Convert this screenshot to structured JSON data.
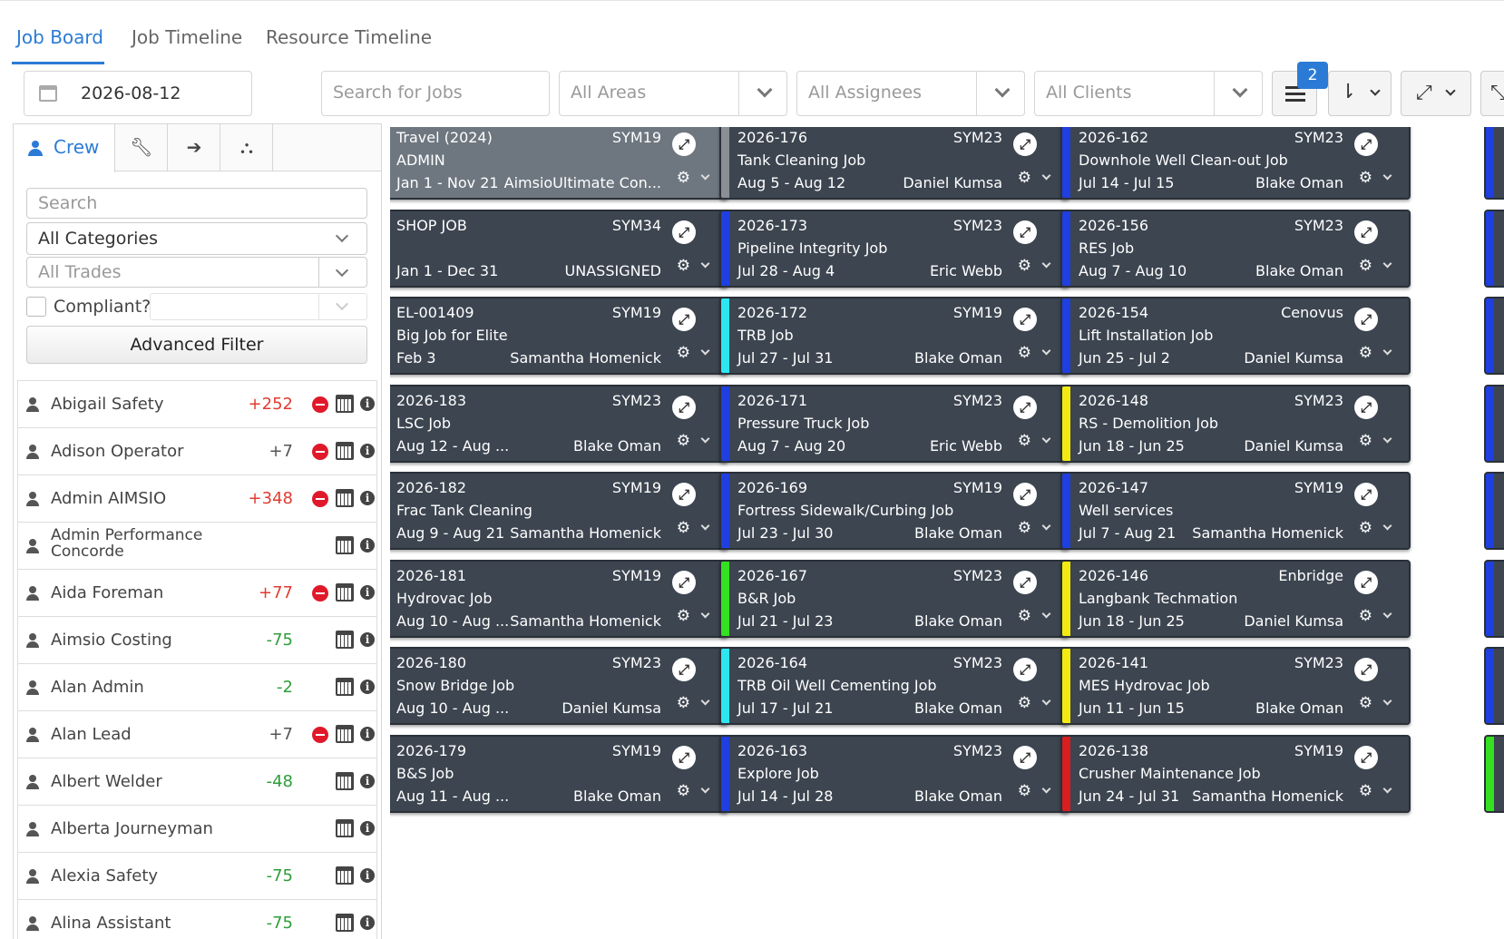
{
  "tabs": [
    {
      "label": "Job Board",
      "active": true
    },
    {
      "label": "Job Timeline",
      "active": false
    },
    {
      "label": "Resource Timeline",
      "active": false
    }
  ],
  "toolbar": {
    "date": "2026-08-12",
    "search_placeholder": "Search for Jobs",
    "areas_placeholder": "All Areas",
    "assignees_placeholder": "All Assignees",
    "clients_placeholder": "All Clients",
    "list_badge": "2",
    "icons": {
      "date": "calendar-icon",
      "list": "list-view-icon",
      "sort": "sort-icon",
      "expand": "expand-icon"
    }
  },
  "sidebar": {
    "tabs": [
      {
        "label": "Crew",
        "icon": "user-icon",
        "active": true
      },
      {
        "label": "",
        "icon": "wrench-icon",
        "active": false
      },
      {
        "label": "",
        "icon": "sign-in-icon",
        "active": false
      },
      {
        "label": "",
        "icon": "hierarchy-icon",
        "active": false
      }
    ],
    "search_placeholder": "Search",
    "categories_value": "All Categories",
    "trades_placeholder": "All Trades",
    "compliant_label": "Compliant?",
    "advanced_filter_label": "Advanced Filter",
    "crew": [
      {
        "name": "Abigail Safety",
        "value": "+252",
        "color": "red",
        "flag": true
      },
      {
        "name": "Adison Operator",
        "value": "+7",
        "color": "gray",
        "flag": true
      },
      {
        "name": "Admin AIMSIO",
        "value": "+348",
        "color": "red",
        "flag": true
      },
      {
        "name": "Admin Performance Concorde",
        "value": "",
        "color": "gray",
        "flag": false
      },
      {
        "name": "Aida Foreman",
        "value": "+77",
        "color": "red",
        "flag": true
      },
      {
        "name": "Aimsio Costing",
        "value": "-75",
        "color": "green",
        "flag": false
      },
      {
        "name": "Alan Admin",
        "value": "-2",
        "color": "green",
        "flag": false
      },
      {
        "name": "Alan Lead",
        "value": "+7",
        "color": "gray",
        "flag": true
      },
      {
        "name": "Albert Welder",
        "value": "-48",
        "color": "green",
        "flag": false
      },
      {
        "name": "Alberta Journeyman",
        "value": "",
        "color": "gray",
        "flag": false
      },
      {
        "name": "Alexia Safety",
        "value": "-75",
        "color": "green",
        "flag": false
      },
      {
        "name": "Alina Assistant",
        "value": "-75",
        "color": "green",
        "flag": false
      }
    ]
  },
  "jobs": [
    [
      {
        "num": "Travel (2024)",
        "code": "SYM19",
        "name": "ADMIN",
        "dates": "Jan 1 - Nov 21",
        "assignee": "AimsioUltimate Con...",
        "strip": "#222222",
        "light": true
      },
      {
        "num": "SHOP JOB",
        "code": "SYM34",
        "name": "",
        "dates": "Jan 1 - Dec 31",
        "assignee": "UNASSIGNED",
        "strip": "#111111",
        "light": false
      },
      {
        "num": "EL-001409",
        "code": "SYM19",
        "name": "Big Job for Elite",
        "dates": "Feb 3",
        "assignee": "Samantha Homenick",
        "strip": "#8e1aa0",
        "light": false
      },
      {
        "num": "2026-183",
        "code": "SYM23",
        "name": "LSC Job",
        "dates": "Aug 12 - Aug ...",
        "assignee": "Blake Oman",
        "strip": "#34e021",
        "light": false
      },
      {
        "num": "2026-182",
        "code": "SYM19",
        "name": "Frac Tank Cleaning",
        "dates": "Aug 9 - Aug 21",
        "assignee": "Samantha Homenick",
        "strip": "#1c5a4c",
        "light": false
      },
      {
        "num": "2026-181",
        "code": "SYM19",
        "name": "Hydrovac Job",
        "dates": "Aug 10 - Aug ...",
        "assignee": "Samantha Homenick",
        "strip": "#f2ea11",
        "light": false
      },
      {
        "num": "2026-180",
        "code": "SYM23",
        "name": "Snow Bridge Job",
        "dates": "Aug 10 - Aug ...",
        "assignee": "Daniel Kumsa",
        "strip": "#1f3fe0",
        "light": false
      },
      {
        "num": "2026-179",
        "code": "SYM19",
        "name": "B&S Job",
        "dates": "Aug 11 - Aug ...",
        "assignee": "Blake Oman",
        "strip": "#2a3038",
        "light": false
      }
    ],
    [
      {
        "num": "2026-176",
        "code": "SYM23",
        "name": "Tank Cleaning Job",
        "dates": "Aug 5 - Aug 12",
        "assignee": "Daniel Kumsa",
        "strip": "#8a8f95",
        "light": false
      },
      {
        "num": "2026-173",
        "code": "SYM23",
        "name": "Pipeline Integrity Job",
        "dates": "Jul 28 - Aug 4",
        "assignee": "Eric Webb",
        "strip": "#1f3fe0",
        "light": false
      },
      {
        "num": "2026-172",
        "code": "SYM19",
        "name": "TRB Job",
        "dates": "Jul 27 - Jul 31",
        "assignee": "Blake Oman",
        "strip": "#2ee6f0",
        "light": false
      },
      {
        "num": "2026-171",
        "code": "SYM23",
        "name": "Pressure Truck Job",
        "dates": "Aug 7 - Aug 20",
        "assignee": "Eric Webb",
        "strip": "#1f3fe0",
        "light": false
      },
      {
        "num": "2026-169",
        "code": "SYM19",
        "name": "Fortress Sidewalk/Curbing Job",
        "dates": "Jul 23 - Jul 30",
        "assignee": "Blake Oman",
        "strip": "#1f3fe0",
        "light": false
      },
      {
        "num": "2026-167",
        "code": "SYM23",
        "name": "B&R Job",
        "dates": "Jul 21 - Jul 23",
        "assignee": "Blake Oman",
        "strip": "#34e021",
        "light": false
      },
      {
        "num": "2026-164",
        "code": "SYM23",
        "name": "TRB Oil Well Cementing Job",
        "dates": "Jul 17 - Jul 21",
        "assignee": "Blake Oman",
        "strip": "#2ee6f0",
        "light": false
      },
      {
        "num": "2026-163",
        "code": "SYM23",
        "name": "Explore Job",
        "dates": "Jul 14 - Jul 28",
        "assignee": "Blake Oman",
        "strip": "#1f3fe0",
        "light": false
      }
    ],
    [
      {
        "num": "2026-162",
        "code": "SYM23",
        "name": "Downhole Well Clean-out Job",
        "dates": "Jul 14 - Jul 15",
        "assignee": "Blake Oman",
        "strip": "#1f3fe0",
        "light": false
      },
      {
        "num": "2026-156",
        "code": "SYM23",
        "name": "RES Job",
        "dates": "Aug 7 - Aug 10",
        "assignee": "Blake Oman",
        "strip": "#1f3fe0",
        "light": false
      },
      {
        "num": "2026-154",
        "code": "Cenovus",
        "name": "Lift Installation Job",
        "dates": "Jun 25 - Jul 2",
        "assignee": "Daniel Kumsa",
        "strip": "#1f3fe0",
        "light": false
      },
      {
        "num": "2026-148",
        "code": "SYM23",
        "name": "RS - Demolition Job",
        "dates": "Jun 18 - Jun 25",
        "assignee": "Daniel Kumsa",
        "strip": "#f2ea11",
        "light": false
      },
      {
        "num": "2026-147",
        "code": "SYM19",
        "name": "Well services",
        "dates": "Jul 7 - Aug 21",
        "assignee": "Samantha Homenick",
        "strip": "#1f3fe0",
        "light": false
      },
      {
        "num": "2026-146",
        "code": "Enbridge",
        "name": "Langbank Techmation",
        "dates": "Jun 18 - Jun 25",
        "assignee": "Daniel Kumsa",
        "strip": "#f2ea11",
        "light": false
      },
      {
        "num": "2026-141",
        "code": "SYM23",
        "name": "MES Hydrovac Job",
        "dates": "Jun 11 - Jun 15",
        "assignee": "Blake Oman",
        "strip": "#f2ea11",
        "light": false
      },
      {
        "num": "2026-138",
        "code": "SYM19",
        "name": "Crusher Maintenance Job",
        "dates": "Jun 24 - Jul 31",
        "assignee": "Samantha Homenick",
        "strip": "#d81e1e",
        "light": false
      }
    ]
  ],
  "edge_strips": [
    "#1f3fe0",
    "#1f3fe0",
    "#1f3fe0",
    "#1f3fe0",
    "#1f3fe0",
    "#1f3fe0",
    "#1f3fe0",
    "#34e021"
  ],
  "colors": {
    "accent": "#2b7bd6",
    "card": "#3c4550",
    "negative": "#2e9d3a",
    "positive": "#e03c31"
  }
}
